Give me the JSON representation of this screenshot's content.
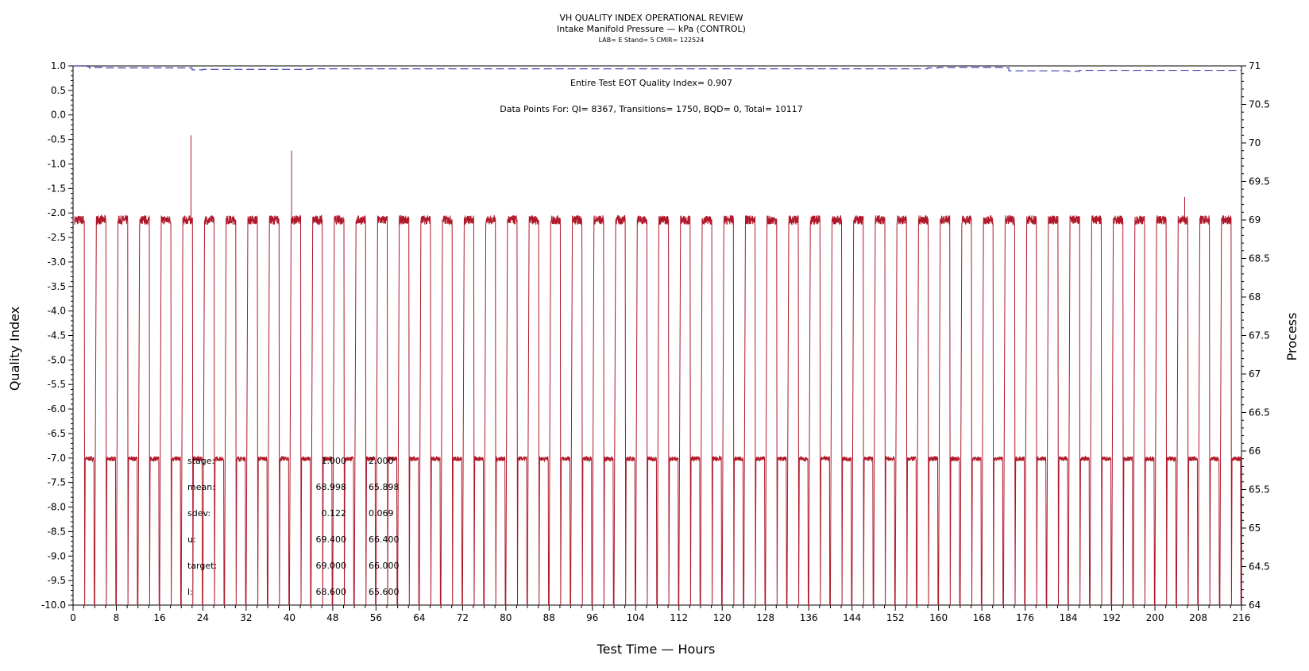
{
  "chart_data": {
    "type": "line",
    "title": "VH QUALITY INDEX OPERATIONAL REVIEW",
    "subtitle": "Intake Manifold Pressure — kPa (CONTROL)",
    "subtitle2": "LAB= E Stand= 5 CMIR= 122524",
    "xlabel": "Test Time — Hours",
    "ylabel_left": "Quality Index",
    "ylabel_right": "Process",
    "xlim": [
      0,
      216
    ],
    "x_ticks": [
      "0",
      "8",
      "16",
      "24",
      "32",
      "40",
      "48",
      "56",
      "64",
      "72",
      "80",
      "88",
      "96",
      "104",
      "112",
      "120",
      "128",
      "136",
      "144",
      "152",
      "160",
      "168",
      "176",
      "184",
      "192",
      "200",
      "208",
      "216"
    ],
    "ylim_left": [
      -10.0,
      1.0
    ],
    "y_left_ticks": [
      "1.0",
      "0.5",
      "0.0",
      "-0.5",
      "-1.0",
      "-1.5",
      "-2.0",
      "-2.5",
      "-3.0",
      "-3.5",
      "-4.0",
      "-4.5",
      "-5.0",
      "-5.5",
      "-6.0",
      "-6.5",
      "-7.0",
      "-7.5",
      "-8.0",
      "-8.5",
      "-9.0",
      "-9.5",
      "-10.0"
    ],
    "ylim_right": [
      64,
      71
    ],
    "y_right_ticks": [
      "71",
      "70.5",
      "70",
      "69.5",
      "69",
      "68.5",
      "68",
      "67.5",
      "67",
      "66.5",
      "66",
      "65.5",
      "65",
      "64.5",
      "64"
    ],
    "annotation_qi": "Entire Test EOT Quality Index=   0.907",
    "annotation_points": "Data Points For: QI=  8367, Transitions=  1750, BQD=     0, Total= 10117",
    "stats_table": {
      "rows": [
        {
          "label": "stage:",
          "v1": "1.000",
          "v2": "2.000"
        },
        {
          "label": "mean:",
          "v1": "68.998",
          "v2": "65.898"
        },
        {
          "label": "sdev:",
          "v1": "0.122",
          "v2": "0.069"
        },
        {
          "label": "u:",
          "v1": "69.400",
          "v2": "66.400"
        },
        {
          "label": "target:",
          "v1": "69.000",
          "v2": "66.000"
        },
        {
          "label": "l:",
          "v1": "68.600",
          "v2": "65.600"
        }
      ]
    },
    "series": [
      {
        "name": "",
        "axis": "left",
        "style": "dashed",
        "color": "#3b3bb0",
        "x": [
          0,
          2.5,
          3,
          4,
          6,
          21,
          22,
          24,
          30,
          42,
          44,
          48,
          60,
          100,
          156,
          158,
          160,
          172,
          173,
          180,
          184,
          186,
          216
        ],
        "y": [
          1.0,
          0.99,
          0.96,
          0.97,
          0.96,
          0.96,
          0.92,
          0.93,
          0.93,
          0.93,
          0.94,
          0.94,
          0.94,
          0.94,
          0.94,
          0.96,
          0.97,
          0.96,
          0.9,
          0.9,
          0.89,
          0.91,
          0.91
        ]
      },
      {
        "name": "",
        "axis": "right",
        "color": "#b0182a",
        "high_level": 69.0,
        "low_level": 65.9,
        "cycle_start_hours": [
          0,
          4,
          8,
          12,
          16,
          20,
          24,
          28,
          32,
          36,
          40,
          44,
          48,
          52,
          56,
          60,
          64,
          68,
          72,
          76,
          80,
          84,
          88,
          92,
          96,
          100,
          104,
          108,
          112,
          116,
          120,
          124,
          128,
          132,
          136,
          140,
          144,
          148,
          152,
          156,
          160,
          164,
          168,
          172,
          176,
          180,
          184,
          188,
          192,
          196,
          200,
          204,
          208,
          212
        ],
        "high_duration_hours": 1.8,
        "spikes": [
          {
            "x": 21.8,
            "y": 70.1
          },
          {
            "x": 40.4,
            "y": 69.9
          },
          {
            "x": 205.5,
            "y": 69.3
          }
        ]
      }
    ]
  }
}
